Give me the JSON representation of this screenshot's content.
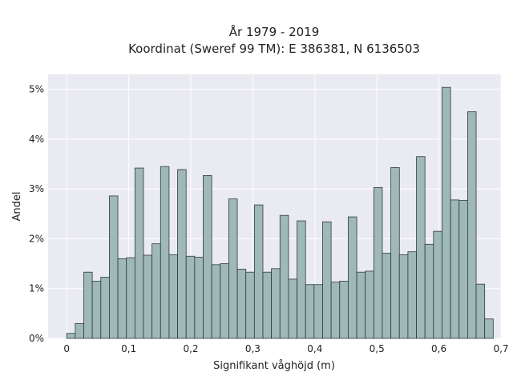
{
  "chart_data": {
    "type": "bar",
    "title": "År 1979 - 2019",
    "subtitle": "Koordinat (Sweref 99 TM): E 386381, N 6136503",
    "xlabel": "Signifikant våghöjd (m)",
    "ylabel": "Andel",
    "xlim": [
      -0.03,
      0.7
    ],
    "ylim": [
      0,
      5.3
    ],
    "x_ticks": [
      0,
      0.1,
      0.2,
      0.3,
      0.4,
      0.5,
      0.6,
      0.7
    ],
    "x_tick_labels": [
      "0",
      "0,1",
      "0,2",
      "0,3",
      "0,4",
      "0,5",
      "0,6",
      "0,7"
    ],
    "y_ticks": [
      0,
      1,
      2,
      3,
      4,
      5
    ],
    "y_tick_labels": [
      "0%",
      "1%",
      "2%",
      "3%",
      "4%",
      "5%"
    ],
    "grid": true,
    "bin_width": 0.01375,
    "bins_start": 0,
    "values": [
      0.1,
      0.3,
      1.33,
      1.15,
      1.23,
      2.86,
      1.6,
      1.62,
      3.42,
      1.67,
      1.9,
      3.45,
      1.68,
      3.39,
      1.65,
      1.63,
      3.27,
      1.48,
      1.5,
      2.8,
      1.39,
      1.33,
      2.68,
      1.33,
      1.4,
      2.47,
      1.19,
      2.36,
      1.08,
      1.08,
      2.34,
      1.13,
      1.15,
      2.44,
      1.33,
      1.35,
      3.03,
      1.71,
      3.43,
      1.68,
      1.74,
      3.65,
      1.89,
      2.15,
      5.04,
      2.78,
      2.77,
      4.55,
      1.09,
      0.39
    ],
    "colors": {
      "bar_fill": "#9fb8b8",
      "bar_edge": "#2f3a3a",
      "plot_bg": "#eaeaf2",
      "grid": "#ffffff"
    }
  }
}
